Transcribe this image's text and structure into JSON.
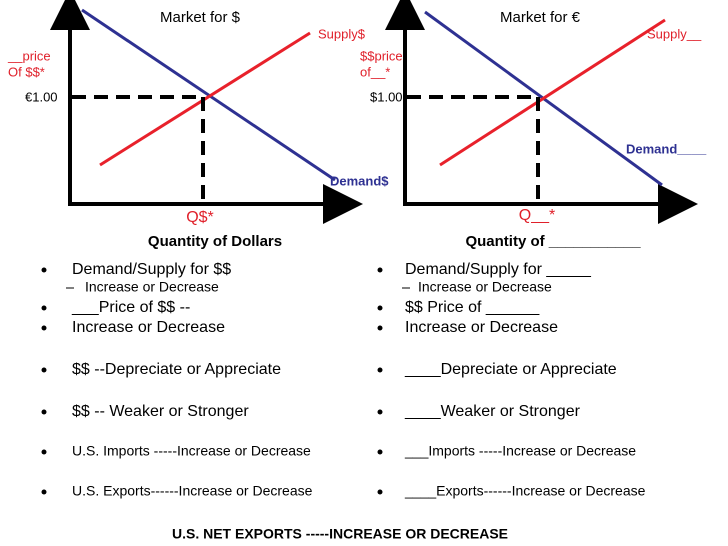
{
  "left_graph": {
    "title": "Market for $",
    "supply_label": "Supply$",
    "price_label": [
      "__price",
      "Of $$*"
    ],
    "price_value": "€1.00",
    "demand_label": "Demand$",
    "quantity_label": "Q$*",
    "axis_title": "Quantity of Dollars"
  },
  "right_graph": {
    "title": "Market for €",
    "supply_label": "Supply__",
    "price_label": [
      "$$price",
      "of__*"
    ],
    "price_value": "$1.00",
    "demand_label": "Demand____",
    "quantity_label": "Q__*",
    "axis_title": "Quantity of ___________"
  },
  "left_list": [
    "Demand/Supply for  $$",
    "Increase or Decrease",
    "___Price of $$ --",
    " Increase or Decrease",
    "$$ --Depreciate or Appreciate",
    "$$ -- Weaker or Stronger",
    "U.S. Imports -----Increase or Decrease",
    "U.S. Exports------Increase or Decrease"
  ],
  "right_list": [
    "Demand/Supply for _____",
    "Increase or Decrease",
    "$$ Price of ______",
    " Increase or Decrease",
    "____Depreciate or Appreciate",
    "____Weaker or Stronger",
    " ___Imports -----Increase or Decrease",
    "____Exports------Increase or Decrease"
  ],
  "footer": "U.S. NET EXPORTS -----INCREASE OR DECREASE"
}
